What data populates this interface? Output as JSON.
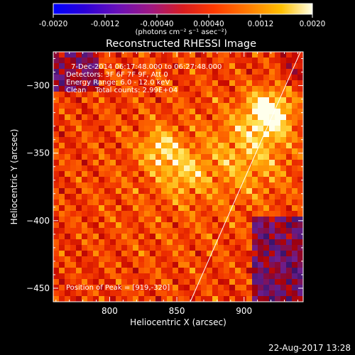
{
  "chart_data": {
    "type": "heatmap",
    "title": "Reconstructed RHESSI Image",
    "xlabel": "Heliocentric X (arcsec)",
    "ylabel": "Heliocentric Y (arcsec)",
    "xlim": [
      758,
      944
    ],
    "ylim": [
      -460,
      -275
    ],
    "xticks": [
      800,
      850,
      900
    ],
    "yticks": [
      -300,
      -350,
      -400,
      -450
    ],
    "colorbar": {
      "ticks": [
        "-0.0020",
        "-0.0012",
        "-0.00040",
        "0.00040",
        "0.0012",
        "0.0020"
      ],
      "range": [
        -0.002,
        0.002
      ],
      "label": "(photons cm⁻² s⁻¹ asec⁻²)"
    },
    "annotations": [
      "7-Dec-2014 06:17:48.000 to 06:27:48.000",
      "Detectors: 3F 6F 7F 9F, Att 0",
      "Energy Range: 6.0 - 12.0 keV",
      "Clean    Total counts: 2.99E+04"
    ],
    "peak_label": "Position of Peak = [919,-320]",
    "peak": [
      919,
      -320
    ],
    "secondary_sources": [
      [
        838,
        -346
      ],
      [
        855,
        -365
      ]
    ],
    "limb_line": [
      [
        860,
        -460
      ],
      [
        942,
        -275
      ]
    ],
    "footer": "22-Aug-2017 13:28",
    "colors": {
      "background": "#000000",
      "text": "#ffffff"
    }
  }
}
